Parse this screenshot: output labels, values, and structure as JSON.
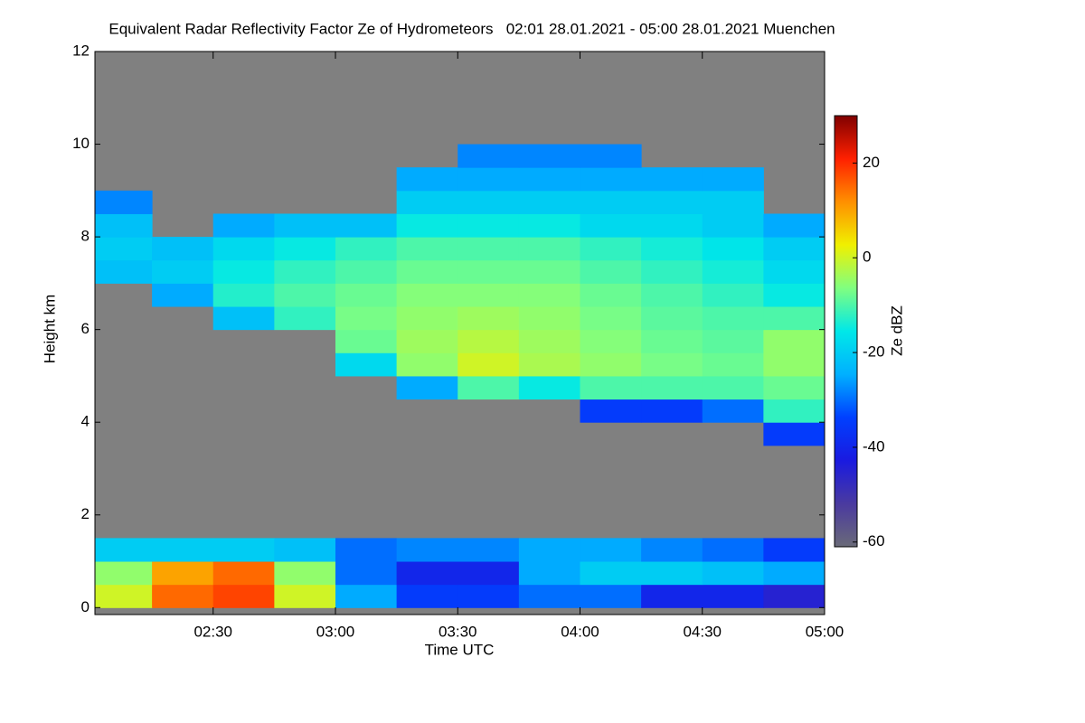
{
  "chart_data": {
    "type": "heatmap",
    "title": "Equivalent Radar Reflectivity Factor Ze of Hydrometeors   02:01 28.01.2021 - 05:00 28.01.2021 Muenchen",
    "x_label": "Time UTC",
    "y_label": "Height km",
    "colorbar_label": "Ze dBZ",
    "xlim": [
      2.0167,
      5.0
    ],
    "xticks": [
      {
        "value": 2.5,
        "label": "02:30"
      },
      {
        "value": 3,
        "label": "03:00"
      },
      {
        "value": 3.5,
        "label": "03:30"
      },
      {
        "value": 4,
        "label": "04:00"
      },
      {
        "value": 4.5,
        "label": "04:30"
      },
      {
        "value": 5,
        "label": "05:00"
      }
    ],
    "ylim": [
      -0.15,
      12
    ],
    "yticks": [
      0,
      2,
      4,
      6,
      8,
      10,
      12
    ],
    "clim": [
      -61,
      30
    ],
    "cticks": [
      20,
      0,
      -20,
      -40,
      -60
    ],
    "colormap": [
      "#6a6a78",
      "#4a3aa0",
      "#1a1ae0",
      "#0040ff",
      "#00b0ff",
      "#00e8e8",
      "#80ff80",
      "#f0f000",
      "#ff9000",
      "#ff2000",
      "#800000"
    ],
    "background": "#808080",
    "x_bins": [
      2.0167,
      2.25,
      2.5,
      2.75,
      3,
      3.25,
      3.5,
      3.75,
      4,
      4.25,
      4.5,
      4.75,
      5.0
    ],
    "y_bins": [
      0,
      0.5,
      1,
      1.5,
      2,
      2.5,
      3,
      3.5,
      4,
      4.5,
      5,
      5.5,
      6,
      6.5,
      7,
      7.5,
      8,
      8.5,
      9,
      9.5,
      10,
      10.5,
      11,
      11.5,
      12
    ],
    "z": [
      [
        0,
        15,
        18,
        0,
        -25,
        -35,
        -35,
        -30,
        -30,
        -40,
        -40,
        -45
      ],
      [
        -5,
        10,
        15,
        -5,
        -30,
        -40,
        -40,
        -25,
        -20,
        -20,
        -22,
        -25
      ],
      [
        -20,
        -20,
        -20,
        -22,
        -30,
        -28,
        -28,
        -25,
        -25,
        -28,
        -30,
        -35
      ],
      [
        null,
        null,
        null,
        null,
        null,
        null,
        null,
        null,
        null,
        null,
        null,
        null
      ],
      [
        null,
        null,
        null,
        null,
        null,
        null,
        null,
        null,
        null,
        null,
        null,
        null
      ],
      [
        null,
        null,
        null,
        null,
        null,
        null,
        null,
        null,
        null,
        null,
        null,
        null
      ],
      [
        null,
        null,
        null,
        null,
        null,
        null,
        null,
        null,
        null,
        null,
        null,
        null
      ],
      [
        null,
        null,
        null,
        null,
        null,
        null,
        null,
        null,
        null,
        null,
        null,
        -35
      ],
      [
        null,
        null,
        null,
        null,
        null,
        null,
        null,
        null,
        -35,
        -35,
        -30,
        -12
      ],
      [
        null,
        null,
        null,
        null,
        null,
        -25,
        -10,
        -15,
        -10,
        -10,
        -10,
        -8
      ],
      [
        null,
        null,
        null,
        null,
        -18,
        -5,
        0,
        -3,
        -5,
        -7,
        -8,
        -5
      ],
      [
        null,
        null,
        null,
        null,
        -8,
        -4,
        -2,
        -4,
        -6,
        -8,
        -9,
        -5
      ],
      [
        null,
        null,
        -22,
        -12,
        -7,
        -5,
        -4,
        -5,
        -7,
        -9,
        -10,
        -10
      ],
      [
        null,
        -25,
        -13,
        -10,
        -8,
        -6,
        -6,
        -6,
        -8,
        -10,
        -12,
        -15
      ],
      [
        -22,
        -20,
        -15,
        -12,
        -10,
        -8,
        -8,
        -8,
        -10,
        -12,
        -14,
        -18
      ],
      [
        -20,
        -22,
        -18,
        -15,
        -12,
        -10,
        -10,
        -10,
        -12,
        -14,
        -16,
        -20
      ],
      [
        -22,
        null,
        -25,
        -22,
        -22,
        -15,
        -15,
        -15,
        -18,
        -18,
        -20,
        -25
      ],
      [
        -28,
        null,
        null,
        null,
        null,
        -20,
        -20,
        -20,
        -20,
        -20,
        -20,
        null
      ],
      [
        null,
        null,
        null,
        null,
        null,
        -25,
        -25,
        -25,
        -25,
        -25,
        -25,
        null
      ],
      [
        null,
        null,
        null,
        null,
        null,
        null,
        -28,
        -28,
        -28,
        null,
        null,
        null
      ],
      [
        null,
        null,
        null,
        null,
        null,
        null,
        null,
        null,
        null,
        null,
        null,
        null
      ],
      [
        null,
        null,
        null,
        null,
        null,
        null,
        null,
        null,
        null,
        null,
        null,
        null
      ],
      [
        null,
        null,
        null,
        null,
        null,
        null,
        null,
        null,
        null,
        null,
        null,
        null
      ],
      [
        null,
        null,
        null,
        null,
        null,
        null,
        null,
        null,
        null,
        null,
        null,
        null
      ]
    ]
  }
}
